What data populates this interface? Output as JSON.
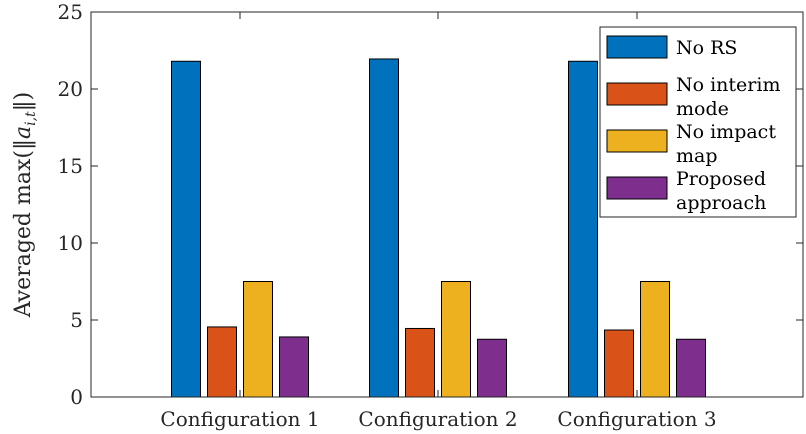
{
  "chart_data": {
    "type": "bar",
    "title": "",
    "xlabel": "",
    "ylabel": "Averaged max(‖a_{i,t}‖)",
    "ylabel_parts": {
      "prefix": "Averaged max(‖",
      "var": "a",
      "sub": "i,t",
      "suffix": "‖)"
    },
    "ylim": [
      0,
      25
    ],
    "yticks": [
      0,
      5,
      10,
      15,
      20,
      25
    ],
    "categories": [
      "Configuration 1",
      "Configuration 2",
      "Configuration 3"
    ],
    "series": [
      {
        "name": "No RS",
        "legend_lines": [
          "No RS"
        ],
        "color": "#0072BD",
        "values": [
          21.8,
          21.95,
          21.8
        ]
      },
      {
        "name": "No interim mode",
        "legend_lines": [
          "No interim",
          "mode"
        ],
        "color": "#D95319",
        "values": [
          4.55,
          4.45,
          4.35
        ]
      },
      {
        "name": "No impact map",
        "legend_lines": [
          "No impact",
          "map"
        ],
        "color": "#EDB120",
        "values": [
          7.5,
          7.5,
          7.5
        ]
      },
      {
        "name": "Proposed approach",
        "legend_lines": [
          "Proposed",
          "approach"
        ],
        "color": "#7E2F8E",
        "values": [
          3.9,
          3.75,
          3.75
        ]
      }
    ],
    "legend_position": "top-right",
    "grid": false
  }
}
